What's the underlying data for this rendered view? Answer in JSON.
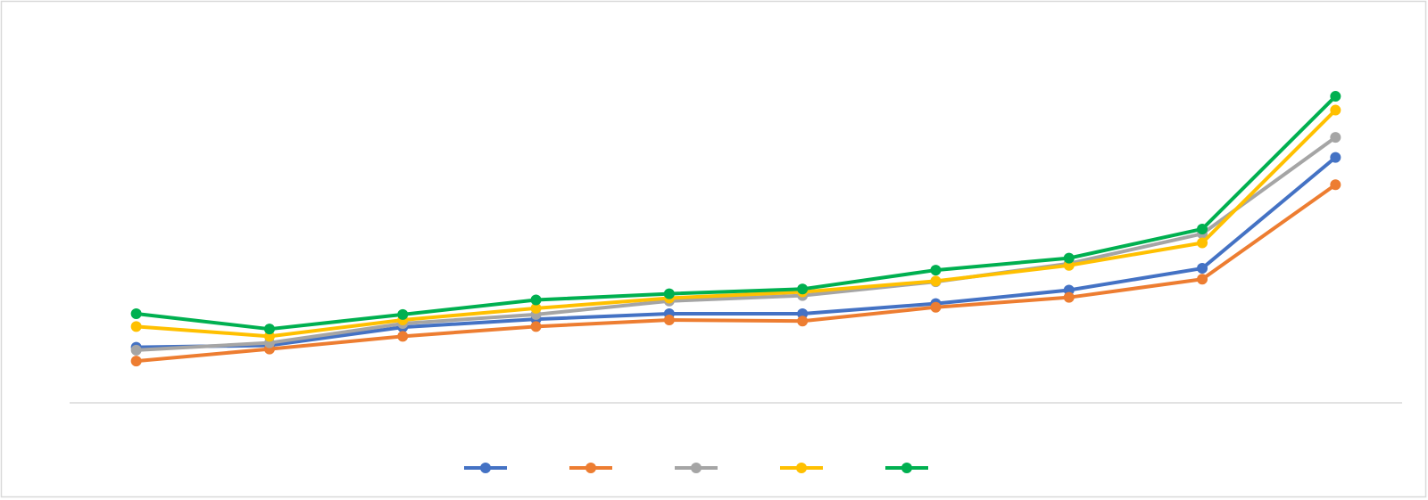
{
  "chart_data": {
    "type": "line",
    "categories": [
      null,
      null,
      null,
      null,
      null,
      null,
      null,
      null,
      null,
      null
    ],
    "series": [
      {
        "color": "#4472c4",
        "values": [
          15.3,
          15.8,
          20.8,
          23,
          24.5,
          24.5,
          27.3,
          31,
          37,
          67.5
        ]
      },
      {
        "color": "#ed7d31",
        "values": [
          11.5,
          14.8,
          18.3,
          21,
          22.8,
          22.5,
          26.3,
          29,
          34,
          60
        ]
      },
      {
        "color": "#a5a5a5",
        "values": [
          14.5,
          16.5,
          21.8,
          24.3,
          28,
          29.5,
          33.3,
          38.3,
          46.5,
          73
        ]
      },
      {
        "color": "#ffc000",
        "values": [
          21,
          18.3,
          22.8,
          26,
          28.8,
          30.5,
          33.5,
          37.8,
          44,
          80.5
        ]
      },
      {
        "color": "#00b050",
        "values": [
          24.5,
          20.3,
          24.3,
          28.3,
          30,
          31.3,
          36.5,
          39.8,
          47.8,
          84.3
        ]
      }
    ],
    "ylim": [
      0,
      100
    ],
    "grid": false
  }
}
